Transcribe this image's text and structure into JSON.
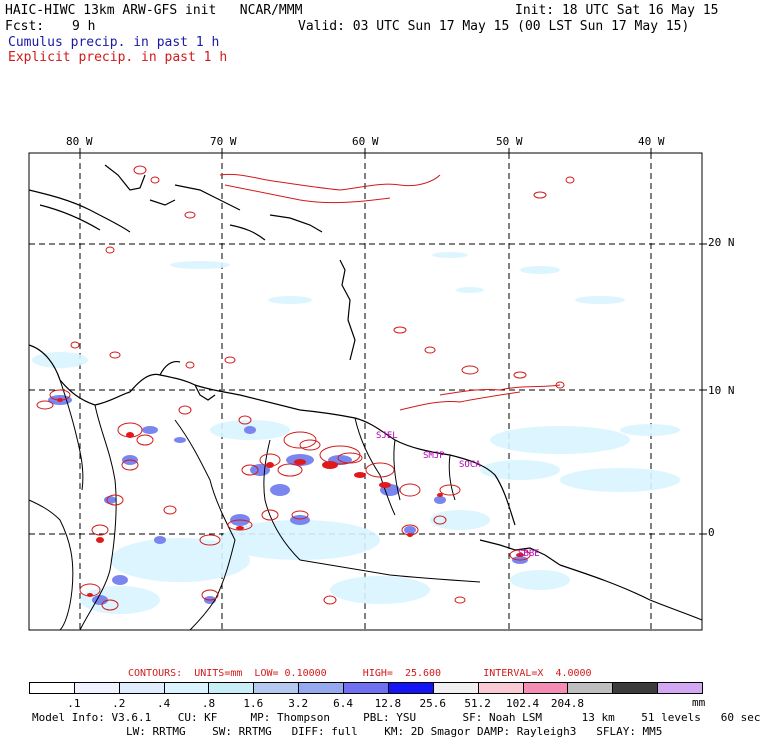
{
  "header": {
    "title": "HAIC-HIWC 13km ARW-GFS init   NCAR/MMM",
    "init": "Init: 18 UTC Sat 16 May 15",
    "fcst_label": "Fcst:",
    "fcst_value": "9 h",
    "valid": "Valid: 03 UTC Sun 17 May 15 (00 LST Sun 17 May 15)",
    "cumulus": "Cumulus precip. in past 1 h",
    "explicit": "Explicit precip. in past 1 h"
  },
  "map": {
    "lon_labels": [
      "80 W",
      "70 W",
      "60 W",
      "50 W",
      "40 W"
    ],
    "lat_labels": [
      "20 N",
      "10 N",
      "0"
    ],
    "stations": [
      "SJEL",
      "SMJP",
      "SOCA",
      "SBBE"
    ]
  },
  "colorbar": {
    "colors": [
      "#ffffff",
      "#eef3ff",
      "#e2ecff",
      "#d9f4ff",
      "#c8eef8",
      "#b4c8f0",
      "#96a8f0",
      "#6f70f0",
      "#1414f5",
      "#f0f0f0",
      "#f9c9d4",
      "#f48cb4",
      "#bebebe",
      "#3c3c3c",
      "#d2a8f5"
    ],
    "values": [
      ".1",
      ".2",
      ".4",
      ".8",
      "1.6",
      "3.2",
      "6.4",
      "12.8",
      "25.6",
      "51.2",
      "102.4",
      "204.8"
    ],
    "unit": "mm"
  },
  "contours": "CONTOURS:  UNITS=mm  LOW= 0.10000      HIGH=  25.600       INTERVAL=X  4.0000",
  "model_info": {
    "line1": "Model Info: V3.6.1    CU: KF     MP: Thompson     PBL: YSU       SF: Noah LSM      13 km    51 levels   60 sec",
    "line2": "LW: RRTMG    SW: RRTMG   DIFF: full    KM: 2D Smagor DAMP: Rayleigh3   SFLAY: MM5"
  },
  "colors": {
    "cumulus": "#1a1aa6",
    "explicit": "#d21a1a",
    "station": "#b400b4"
  }
}
